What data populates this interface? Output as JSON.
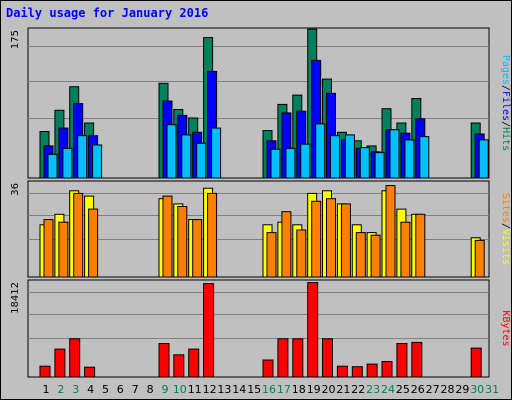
{
  "chart_data": {
    "type": "bar",
    "title": "Daily usage for January 2016",
    "x": [
      "1",
      "2",
      "3",
      "4",
      "5",
      "6",
      "7",
      "8",
      "9",
      "10",
      "11",
      "12",
      "13",
      "14",
      "15",
      "16",
      "17",
      "18",
      "19",
      "20",
      "21",
      "22",
      "23",
      "24",
      "25",
      "26",
      "27",
      "28",
      "29",
      "30",
      "31"
    ],
    "weekend_days": [
      "2",
      "3",
      "9",
      "10",
      "16",
      "17",
      "23",
      "24",
      "30",
      "31"
    ],
    "panels": [
      {
        "id": "hits_files_pages",
        "ymax": 175,
        "ytick_label": "175",
        "legend": [
          "Pages",
          "/",
          "Files",
          "/",
          "Hits"
        ],
        "legend_colors": [
          "#00bfff",
          "#000000",
          "#0000ff",
          "#000000",
          "#00805c"
        ],
        "series": [
          {
            "name": "Hits",
            "color": "#00805c",
            "values": [
              55,
              80,
              108,
              65,
              0,
              0,
              0,
              0,
              112,
              81,
              71,
              166,
              0,
              0,
              0,
              56,
              87,
              98,
              176,
              117,
              54,
              44,
              38,
              82,
              65,
              94,
              0,
              0,
              0,
              65,
              0
            ]
          },
          {
            "name": "Files",
            "color": "#0000ff",
            "values": [
              38,
              59,
              88,
              50,
              0,
              0,
              0,
              0,
              91,
              74,
              54,
              126,
              0,
              0,
              0,
              44,
              77,
              79,
              139,
              100,
              45,
              35,
              31,
              57,
              53,
              70,
              0,
              0,
              0,
              52,
              0
            ]
          },
          {
            "name": "Pages",
            "color": "#00bfff",
            "values": [
              28,
              35,
              50,
              39,
              0,
              0,
              0,
              0,
              63,
              51,
              41,
              59,
              0,
              0,
              0,
              34,
              35,
              40,
              64,
              50,
              51,
              36,
              30,
              57,
              45,
              49,
              0,
              0,
              0,
              45,
              0
            ]
          }
        ]
      },
      {
        "id": "visits_sites",
        "ymax": 36,
        "ytick_label": "36",
        "legend": [
          "Sites",
          "/",
          "Visits"
        ],
        "legend_colors": [
          "#ff8000",
          "#000000",
          "#ffff00"
        ],
        "series": [
          {
            "name": "Visits",
            "color": "#ffff00",
            "values": [
              20,
              24,
              33,
              31,
              0,
              0,
              0,
              0,
              30,
              28,
              22,
              34,
              0,
              0,
              0,
              20,
              21,
              20,
              32,
              33,
              28,
              20,
              17,
              33,
              26,
              24,
              0,
              0,
              0,
              15,
              0
            ]
          },
          {
            "name": "Sites",
            "color": "#ff8000",
            "values": [
              22,
              21,
              32,
              26,
              0,
              0,
              0,
              0,
              31,
              27,
              22,
              32,
              0,
              0,
              0,
              17,
              25,
              18,
              29,
              30,
              28,
              17,
              16,
              35,
              21,
              24,
              0,
              0,
              0,
              14,
              0
            ]
          }
        ]
      },
      {
        "id": "kbytes",
        "ymax": 18412,
        "ytick_label": "18412",
        "legend": [
          "KBytes"
        ],
        "legend_colors": [
          "#ff0000"
        ],
        "series": [
          {
            "name": "KBytes",
            "color": "#ff0000",
            "values": [
              2100,
              5400,
              7400,
              1900,
              0,
              0,
              0,
              0,
              6500,
              4300,
              5400,
              18100,
              0,
              0,
              0,
              3300,
              7400,
              7400,
              18300,
              7400,
              2100,
              2000,
              2500,
              3000,
              6500,
              6700,
              0,
              0,
              0,
              5600,
              0
            ]
          }
        ]
      }
    ],
    "colors": {
      "background": "#c0c0c0",
      "title": "#0000ff",
      "weekday_tick": "#000000",
      "weekend_tick": "#00805c"
    }
  }
}
